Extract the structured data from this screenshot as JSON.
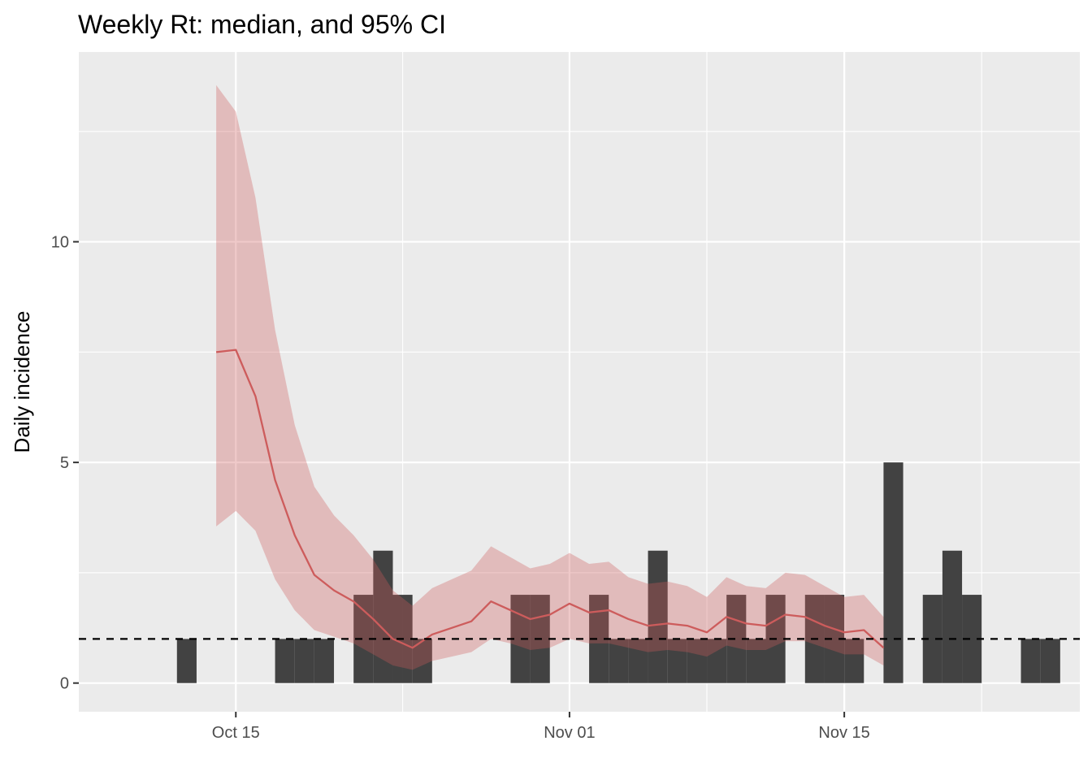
{
  "chart_data": {
    "type": "bar",
    "title": "Weekly Rt: median, and 95% CI",
    "xlabel": "",
    "ylabel": "Daily incidence",
    "x_ticks": [
      {
        "date": "2020-10-15",
        "label": "Oct 15"
      },
      {
        "date": "2020-11-01",
        "label": "Nov 01"
      },
      {
        "date": "2020-11-15",
        "label": "Nov 15"
      }
    ],
    "y_ticks": [
      0,
      5,
      10
    ],
    "xlim": [
      "2020-10-07",
      "2020-11-27"
    ],
    "ylim": [
      -0.65,
      14.3
    ],
    "grid": true,
    "reference_line": {
      "y": 1,
      "style": "dashed",
      "color": "#000000"
    },
    "colors": {
      "panel": "#ebebeb",
      "grid": "#ffffff",
      "bars": "#333333",
      "rt_line": "#cd5c5c",
      "ci_ribbon": "#cd5c5c"
    },
    "incidence": [
      {
        "date": "2020-10-12",
        "cases": 1
      },
      {
        "date": "2020-10-17",
        "cases": 1
      },
      {
        "date": "2020-10-18",
        "cases": 1
      },
      {
        "date": "2020-10-19",
        "cases": 1
      },
      {
        "date": "2020-10-21",
        "cases": 2
      },
      {
        "date": "2020-10-22",
        "cases": 3
      },
      {
        "date": "2020-10-23",
        "cases": 2
      },
      {
        "date": "2020-10-24",
        "cases": 1
      },
      {
        "date": "2020-10-29",
        "cases": 2
      },
      {
        "date": "2020-10-30",
        "cases": 2
      },
      {
        "date": "2020-11-02",
        "cases": 2
      },
      {
        "date": "2020-11-03",
        "cases": 1
      },
      {
        "date": "2020-11-04",
        "cases": 1
      },
      {
        "date": "2020-11-05",
        "cases": 3
      },
      {
        "date": "2020-11-06",
        "cases": 1
      },
      {
        "date": "2020-11-07",
        "cases": 1
      },
      {
        "date": "2020-11-08",
        "cases": 1
      },
      {
        "date": "2020-11-09",
        "cases": 2
      },
      {
        "date": "2020-11-10",
        "cases": 1
      },
      {
        "date": "2020-11-11",
        "cases": 2
      },
      {
        "date": "2020-11-13",
        "cases": 2
      },
      {
        "date": "2020-11-14",
        "cases": 2
      },
      {
        "date": "2020-11-15",
        "cases": 1
      },
      {
        "date": "2020-11-17",
        "cases": 5
      },
      {
        "date": "2020-11-19",
        "cases": 2
      },
      {
        "date": "2020-11-20",
        "cases": 3
      },
      {
        "date": "2020-11-21",
        "cases": 2
      },
      {
        "date": "2020-11-24",
        "cases": 1
      },
      {
        "date": "2020-11-25",
        "cases": 1
      }
    ],
    "series": [
      {
        "type": "line+ribbon",
        "dates": [
          "2020-10-14",
          "2020-10-15",
          "2020-10-16",
          "2020-10-17",
          "2020-10-18",
          "2020-10-19",
          "2020-10-20",
          "2020-10-21",
          "2020-10-22",
          "2020-10-23",
          "2020-10-24",
          "2020-10-25",
          "2020-10-26",
          "2020-10-27",
          "2020-10-28",
          "2020-10-29",
          "2020-10-30",
          "2020-10-31",
          "2020-11-01",
          "2020-11-02",
          "2020-11-03",
          "2020-11-04",
          "2020-11-05",
          "2020-11-06",
          "2020-11-07",
          "2020-11-08",
          "2020-11-09",
          "2020-11-10",
          "2020-11-11",
          "2020-11-12",
          "2020-11-13",
          "2020-11-14",
          "2020-11-15",
          "2020-11-16",
          "2020-11-17",
          "2020-11-18"
        ],
        "median": [
          7.5,
          7.55,
          6.5,
          4.6,
          3.35,
          2.45,
          2.1,
          1.85,
          1.45,
          1.0,
          0.8,
          1.1,
          1.25,
          1.4,
          1.85,
          1.65,
          1.45,
          1.55,
          1.8,
          1.6,
          1.65,
          1.45,
          1.3,
          1.35,
          1.3,
          1.15,
          1.5,
          1.35,
          1.3,
          1.55,
          1.5,
          1.3,
          1.15,
          1.2,
          0.8,
          null
        ],
        "lower": [
          3.55,
          3.9,
          3.45,
          2.35,
          1.65,
          1.2,
          1.05,
          0.9,
          0.65,
          0.4,
          0.3,
          0.5,
          0.6,
          0.7,
          1.0,
          0.9,
          0.75,
          0.8,
          1.0,
          0.9,
          0.9,
          0.8,
          0.7,
          0.75,
          0.7,
          0.6,
          0.85,
          0.75,
          0.75,
          0.95,
          0.95,
          0.8,
          0.65,
          0.65,
          0.4,
          null
        ],
        "upper": [
          13.55,
          12.95,
          11.0,
          8.0,
          5.85,
          4.45,
          3.8,
          3.35,
          2.8,
          2.1,
          1.75,
          2.15,
          2.35,
          2.55,
          3.1,
          2.85,
          2.6,
          2.7,
          2.95,
          2.7,
          2.75,
          2.4,
          2.25,
          2.3,
          2.2,
          1.95,
          2.4,
          2.2,
          2.15,
          2.5,
          2.45,
          2.2,
          1.95,
          2.0,
          1.5,
          null
        ]
      }
    ]
  }
}
